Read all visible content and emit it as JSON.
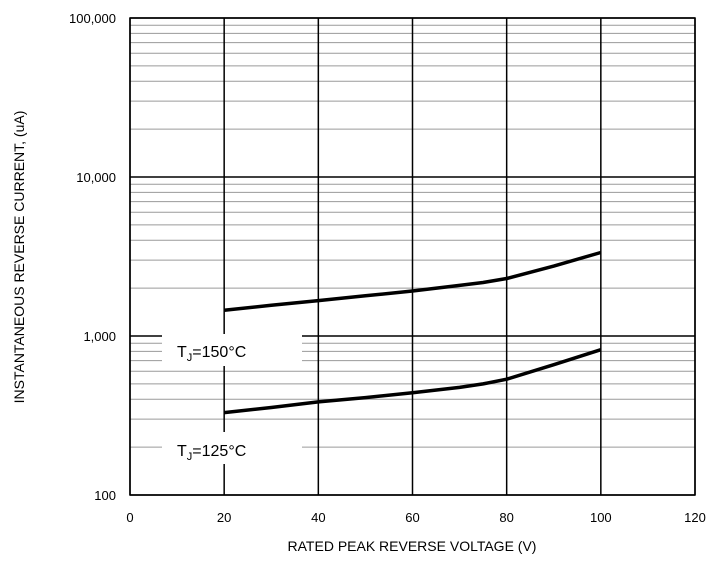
{
  "chart_data": {
    "type": "line",
    "title": "",
    "xlabel": "RATED PEAK REVERSE VOLTAGE (V)",
    "ylabel": "INSTANTANEOUS REVERSE CURRENT, (uA)",
    "xlim": [
      0,
      120
    ],
    "ylim": [
      100,
      100000
    ],
    "yscale": "log",
    "grid": true,
    "x_ticks": [
      0,
      20,
      40,
      60,
      80,
      100,
      120
    ],
    "x_tick_labels": [
      "0",
      "20",
      "40",
      "60",
      "80",
      "100",
      "120"
    ],
    "y_ticks": [
      100,
      1000,
      10000,
      100000
    ],
    "y_tick_labels": [
      "100",
      "1,000",
      "10,000",
      "100,000"
    ],
    "legend": "none",
    "series": [
      {
        "name": "TJ=150°C",
        "x": [
          20,
          30,
          40,
          50,
          60,
          70,
          75,
          80,
          90,
          100
        ],
        "y": [
          1450,
          1560,
          1670,
          1790,
          1920,
          2080,
          2170,
          2300,
          2750,
          3350
        ]
      },
      {
        "name": "TJ=125°C",
        "x": [
          20,
          30,
          40,
          50,
          60,
          70,
          75,
          80,
          90,
          100
        ],
        "y": [
          330,
          355,
          385,
          410,
          440,
          475,
          500,
          535,
          660,
          820
        ]
      }
    ],
    "annotations": [
      {
        "main": "T",
        "sub": "J",
        "rest": "=150°C",
        "series": 0
      },
      {
        "main": "T",
        "sub": "J",
        "rest": "=125°C",
        "series": 1
      }
    ]
  }
}
